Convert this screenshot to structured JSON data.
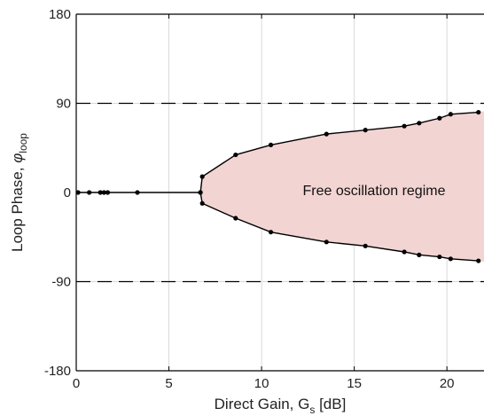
{
  "chart_data": {
    "type": "line",
    "xlabel": "Direct Gain, G",
    "xlabel_sub": "s",
    "xlabel_unit": " [dB]",
    "ylabel": "Loop Phase, ",
    "ylabel_symbol": "φ",
    "ylabel_sub": "loop",
    "xlim": [
      0,
      22
    ],
    "ylim": [
      -180,
      180
    ],
    "xticks": [
      0,
      5,
      10,
      15,
      20
    ],
    "xtick_labels": [
      "0",
      "5",
      "10",
      "15",
      "20"
    ],
    "yticks": [
      -180,
      -90,
      0,
      90,
      180
    ],
    "ytick_labels": [
      "-180",
      "-90",
      "0",
      "90",
      "180"
    ],
    "grid": true,
    "reference_lines": [
      90,
      -90
    ],
    "annotation": "Free oscillation regime",
    "colors": {
      "region_fill": "#f2d4d2",
      "line": "#000000",
      "grid": "#d9d9d9"
    },
    "series": [
      {
        "points": [
          [
            0.1,
            0
          ],
          [
            0.7,
            0
          ],
          [
            1.3,
            0
          ],
          [
            1.5,
            0
          ],
          [
            1.7,
            0
          ],
          [
            3.3,
            0
          ],
          [
            6.7,
            0
          ],
          [
            6.8,
            16
          ],
          [
            8.6,
            38
          ],
          [
            10.5,
            48
          ],
          [
            13.5,
            59
          ],
          [
            15.6,
            63
          ],
          [
            17.7,
            67
          ],
          [
            18.5,
            70
          ],
          [
            19.6,
            75
          ],
          [
            20.2,
            79
          ],
          [
            21.7,
            81
          ]
        ]
      },
      {
        "points": [
          [
            6.7,
            0
          ],
          [
            6.8,
            -11
          ],
          [
            8.6,
            -26
          ],
          [
            10.5,
            -40
          ],
          [
            13.5,
            -50
          ],
          [
            15.6,
            -54
          ],
          [
            17.7,
            -60
          ],
          [
            18.5,
            -63
          ],
          [
            19.6,
            -65
          ],
          [
            20.2,
            -67
          ],
          [
            21.7,
            -69
          ]
        ]
      }
    ]
  }
}
